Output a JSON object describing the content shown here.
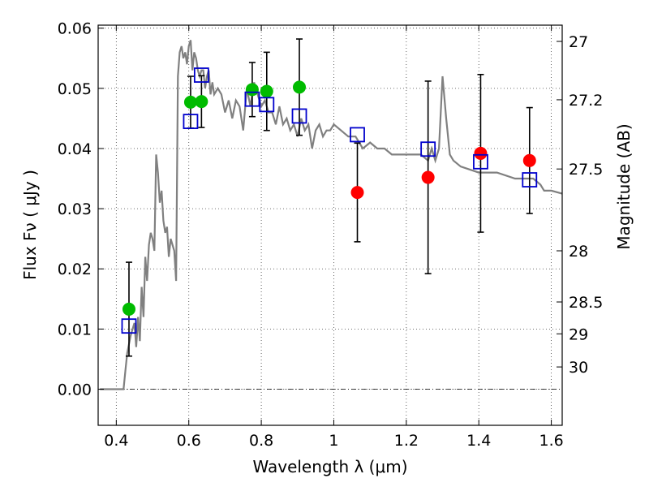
{
  "chart_data": {
    "type": "scatter",
    "xlabel": "Wavelength  λ (μm)",
    "ylabel": "Flux  Fν  ( μJy )",
    "y2label": "Magnitude (AB)",
    "xlim": [
      0.35,
      1.63
    ],
    "ylim": [
      -0.006,
      0.0605
    ],
    "grid": true,
    "xticks": [
      0.4,
      0.6,
      0.8,
      1.0,
      1.2,
      1.4,
      1.6
    ],
    "xtick_labels": [
      "0.4",
      "0.6",
      "0.8",
      "1",
      "1.2",
      "1.4",
      "1.6"
    ],
    "yticks": [
      0.0,
      0.01,
      0.02,
      0.03,
      0.04,
      0.05,
      0.06
    ],
    "ytick_labels": [
      "0.00",
      "0.01",
      "0.02",
      "0.03",
      "0.04",
      "0.05",
      "0.06"
    ],
    "y2ticks": [
      {
        "label": "27",
        "flux": 0.0578
      },
      {
        "label": "27.2",
        "flux": 0.0481
      },
      {
        "label": "27.5",
        "flux": 0.0366
      },
      {
        "label": "28",
        "flux": 0.023
      },
      {
        "label": "28.5",
        "flux": 0.0145
      },
      {
        "label": "29",
        "flux": 0.0092
      },
      {
        "label": "30",
        "flux": 0.0037
      }
    ],
    "model_spectrum": {
      "color": "#808080",
      "x": [
        0.355,
        0.42,
        0.425,
        0.43,
        0.44,
        0.45,
        0.455,
        0.46,
        0.465,
        0.47,
        0.475,
        0.48,
        0.485,
        0.49,
        0.495,
        0.5,
        0.505,
        0.51,
        0.515,
        0.52,
        0.525,
        0.53,
        0.535,
        0.54,
        0.545,
        0.55,
        0.555,
        0.56,
        0.565,
        0.57,
        0.575,
        0.58,
        0.585,
        0.59,
        0.595,
        0.6,
        0.605,
        0.61,
        0.615,
        0.62,
        0.625,
        0.63,
        0.635,
        0.64,
        0.645,
        0.65,
        0.655,
        0.66,
        0.665,
        0.67,
        0.68,
        0.69,
        0.7,
        0.71,
        0.72,
        0.73,
        0.74,
        0.75,
        0.76,
        0.77,
        0.78,
        0.79,
        0.8,
        0.81,
        0.82,
        0.83,
        0.84,
        0.85,
        0.86,
        0.87,
        0.88,
        0.89,
        0.9,
        0.91,
        0.92,
        0.93,
        0.94,
        0.95,
        0.96,
        0.97,
        0.98,
        0.99,
        1.0,
        1.02,
        1.04,
        1.06,
        1.08,
        1.1,
        1.12,
        1.14,
        1.16,
        1.18,
        1.2,
        1.22,
        1.24,
        1.26,
        1.27,
        1.28,
        1.29,
        1.3,
        1.31,
        1.32,
        1.33,
        1.35,
        1.4,
        1.45,
        1.5,
        1.55,
        1.57,
        1.58,
        1.6,
        1.63
      ],
      "y": [
        0.0,
        0.0,
        0.003,
        0.006,
        0.009,
        0.011,
        0.007,
        0.012,
        0.008,
        0.017,
        0.012,
        0.022,
        0.018,
        0.024,
        0.026,
        0.025,
        0.023,
        0.039,
        0.036,
        0.031,
        0.033,
        0.028,
        0.026,
        0.027,
        0.022,
        0.025,
        0.024,
        0.023,
        0.018,
        0.052,
        0.056,
        0.057,
        0.055,
        0.056,
        0.054,
        0.057,
        0.058,
        0.053,
        0.056,
        0.055,
        0.053,
        0.052,
        0.053,
        0.053,
        0.05,
        0.052,
        0.053,
        0.049,
        0.051,
        0.049,
        0.05,
        0.049,
        0.046,
        0.048,
        0.045,
        0.048,
        0.047,
        0.043,
        0.05,
        0.047,
        0.051,
        0.049,
        0.047,
        0.048,
        0.046,
        0.046,
        0.044,
        0.047,
        0.044,
        0.045,
        0.043,
        0.044,
        0.042,
        0.045,
        0.043,
        0.044,
        0.04,
        0.043,
        0.044,
        0.042,
        0.043,
        0.043,
        0.044,
        0.043,
        0.042,
        0.042,
        0.04,
        0.041,
        0.04,
        0.04,
        0.039,
        0.039,
        0.039,
        0.039,
        0.039,
        0.038,
        0.04,
        0.038,
        0.04,
        0.052,
        0.045,
        0.039,
        0.038,
        0.037,
        0.036,
        0.036,
        0.035,
        0.035,
        0.034,
        0.033,
        0.033,
        0.0325
      ]
    },
    "series": [
      {
        "name": "",
        "marker": "circle",
        "color": "#00bb00",
        "x": [
          0.435,
          0.605,
          0.635,
          0.775,
          0.815,
          0.905
        ],
        "y": [
          0.0133,
          0.0477,
          0.0478,
          0.0498,
          0.0495,
          0.0502
        ],
        "yerr": [
          0.0078,
          0.0043,
          0.0043,
          0.0045,
          0.0065,
          0.008
        ]
      },
      {
        "name": "",
        "marker": "circle",
        "color": "#ff0000",
        "x": [
          1.065,
          1.26,
          1.405,
          1.54
        ],
        "y": [
          0.0327,
          0.0352,
          0.0392,
          0.038
        ],
        "yerr": [
          0.0082,
          0.016,
          0.0131,
          0.0088
        ]
      },
      {
        "name": "",
        "marker": "square",
        "color": "#0000cc",
        "x": [
          0.435,
          0.605,
          0.635,
          0.775,
          0.815,
          0.905,
          1.065,
          1.26,
          1.405,
          1.54
        ],
        "y": [
          0.0105,
          0.0445,
          0.0522,
          0.0482,
          0.0473,
          0.0454,
          0.0423,
          0.0399,
          0.0378,
          0.0348
        ]
      }
    ]
  }
}
